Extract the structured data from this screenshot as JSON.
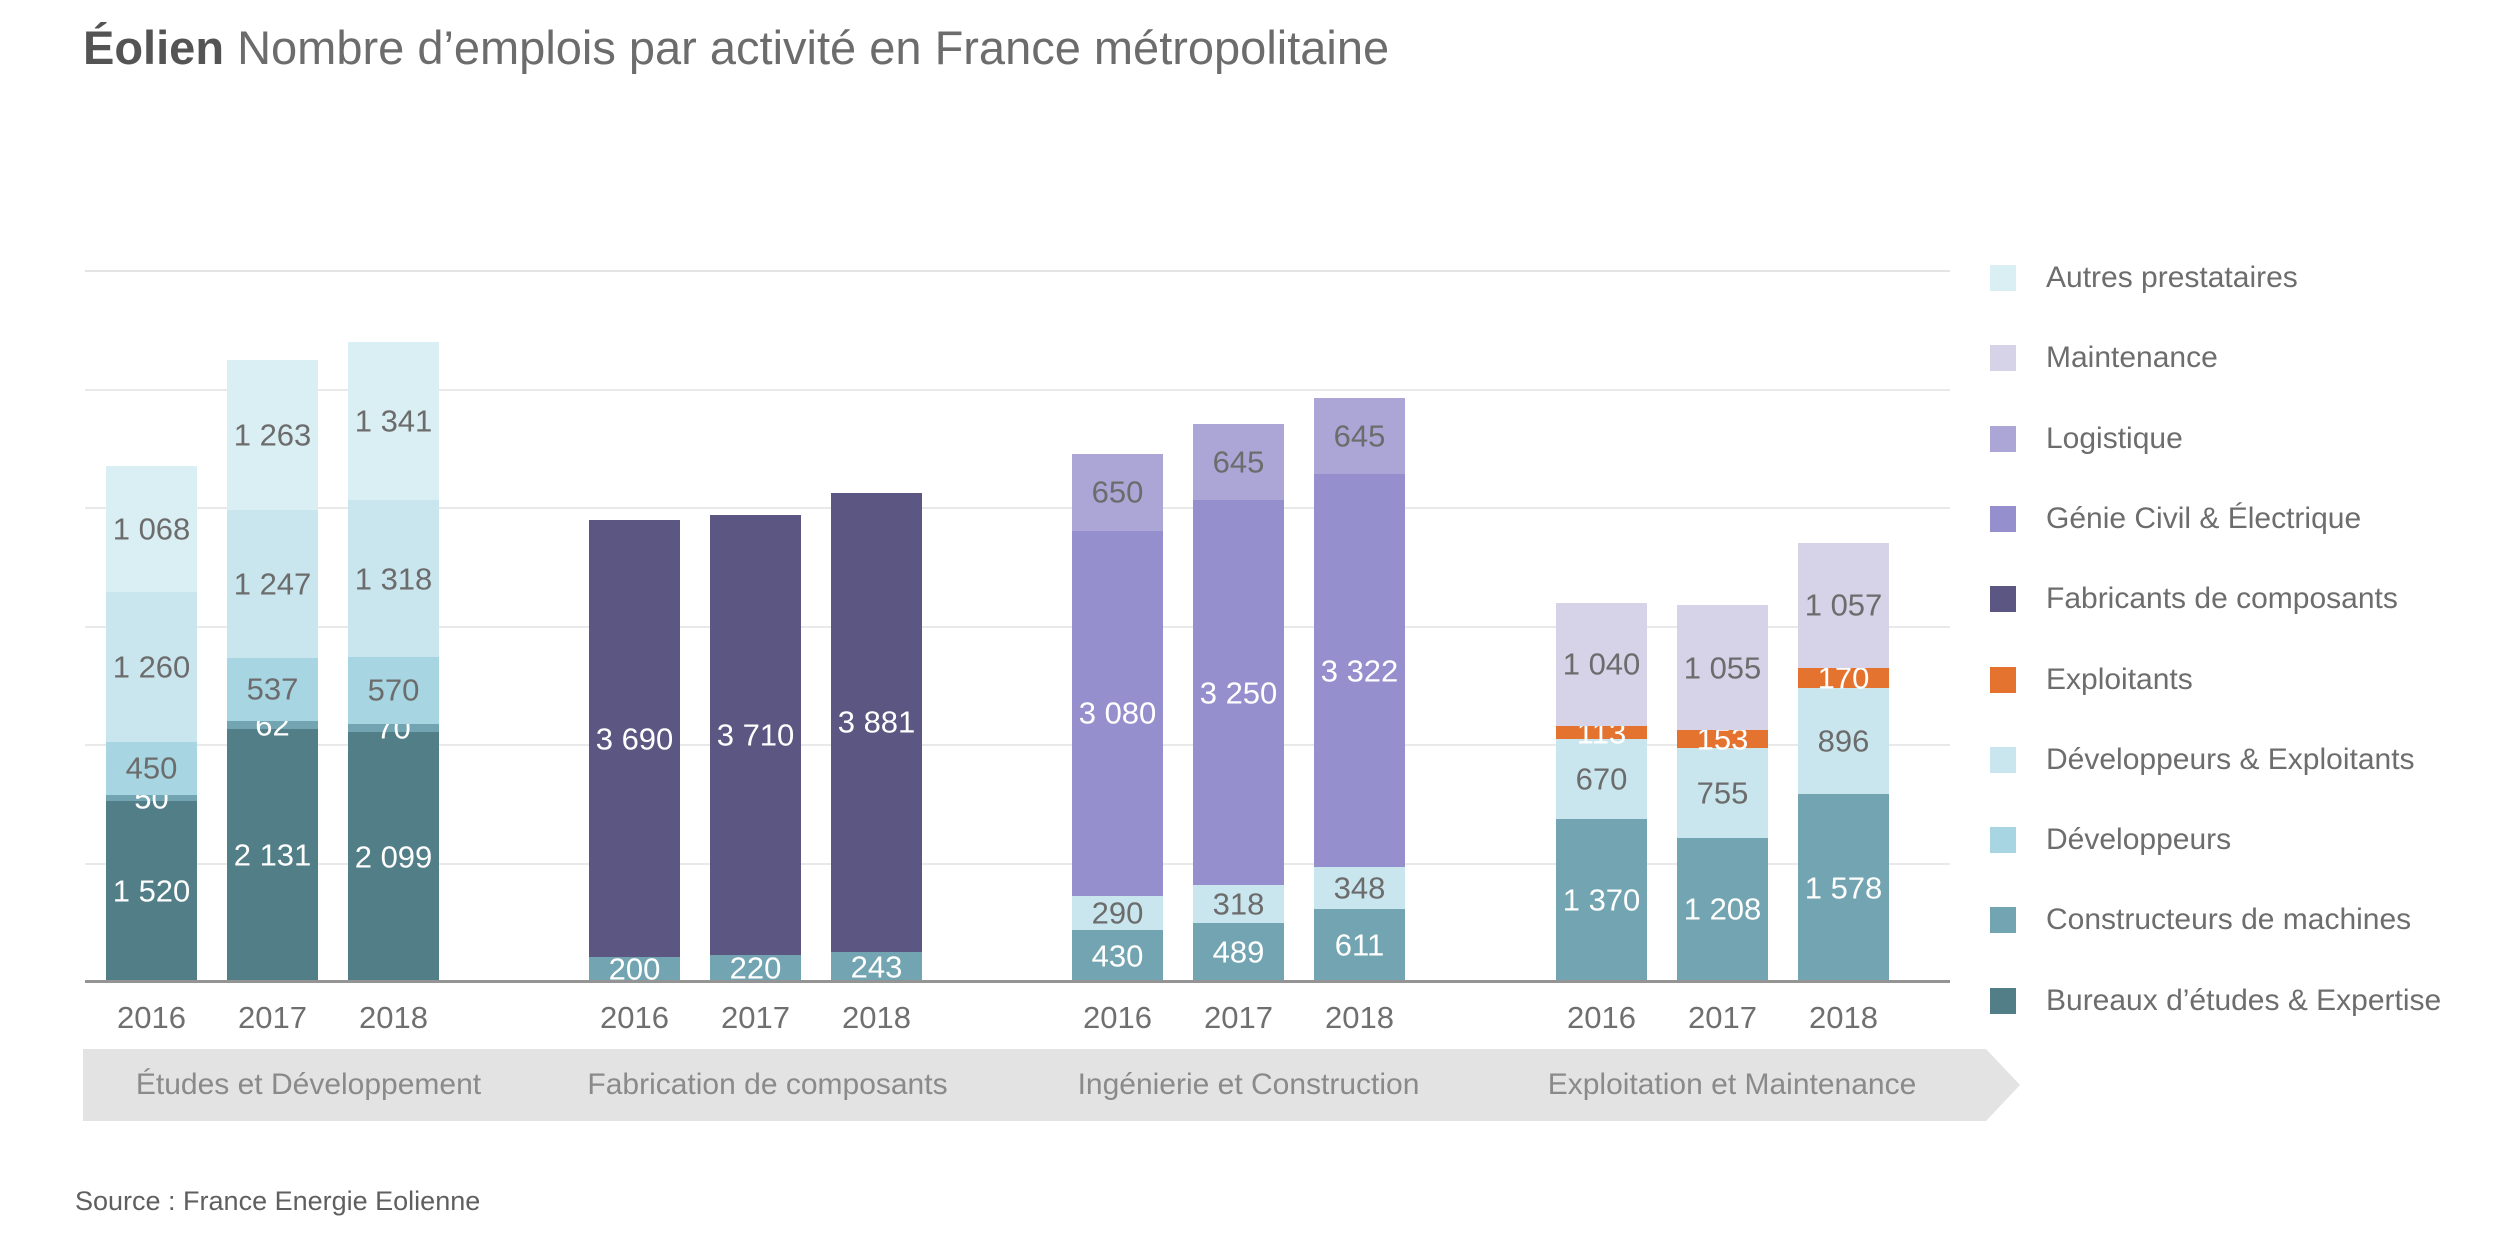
{
  "title": {
    "bold": "Éolien",
    "rest": "Nombre d’emplois par activité en France métropolitaine"
  },
  "source": "Source : France Energie Eolienne",
  "legend": {
    "position": "right",
    "items": [
      {
        "id": "autres",
        "label": "Autres prestataires",
        "color": "#DAEFF3"
      },
      {
        "id": "maintenance",
        "label": "Maintenance",
        "color": "#D6D3E8"
      },
      {
        "id": "logistique",
        "label": "Logistique",
        "color": "#ACA6D7"
      },
      {
        "id": "genie",
        "label": "Génie Civil & Électrique",
        "color": "#9590CD"
      },
      {
        "id": "fabricants",
        "label": "Fabricants de composants",
        "color": "#5C5782"
      },
      {
        "id": "exploitants",
        "label": "Exploitants",
        "color": "#E4732F"
      },
      {
        "id": "dev_exploitants",
        "label": "Développeurs & Exploitants",
        "color": "#C9E6EE"
      },
      {
        "id": "developpeurs",
        "label": "Développeurs",
        "color": "#A7D6E2"
      },
      {
        "id": "constructeurs",
        "label": "Constructeurs de machines",
        "color": "#72A5B1"
      },
      {
        "id": "bureaux",
        "label": "Bureaux d’études & Expertise",
        "color": "#527E88"
      }
    ]
  },
  "chart_data": {
    "type": "bar",
    "stacked": true,
    "ylim": [
      0,
      6000
    ],
    "grid_step": 1000,
    "grid": "horizontal",
    "y_tick_labels_visible": false,
    "segment_order": "bottom_to_top",
    "groups": [
      {
        "name": "Études et Développement",
        "bars": [
          {
            "year": "2016",
            "total": 4348,
            "segments": [
              {
                "series": "bureaux",
                "value": 1520,
                "label": "1 520",
                "text": "white"
              },
              {
                "series": "constructeurs",
                "value": 50,
                "label": "50",
                "text": "white"
              },
              {
                "series": "developpeurs",
                "value": 450,
                "label": "450",
                "text": "dark"
              },
              {
                "series": "dev_exploitants",
                "value": 1260,
                "label": "1 260",
                "text": "dark"
              },
              {
                "series": "autres",
                "value": 1068,
                "label": "1 068",
                "text": "dark"
              }
            ]
          },
          {
            "year": "2017",
            "total": 5240,
            "segments": [
              {
                "series": "bureaux",
                "value": 2131,
                "label": "2 131",
                "text": "white"
              },
              {
                "series": "constructeurs",
                "value": 62,
                "label": "62",
                "text": "white"
              },
              {
                "series": "developpeurs",
                "value": 537,
                "label": "537",
                "text": "dark"
              },
              {
                "series": "dev_exploitants",
                "value": 1247,
                "label": "1 247",
                "text": "dark"
              },
              {
                "series": "autres",
                "value": 1263,
                "label": "1 263",
                "text": "dark"
              }
            ]
          },
          {
            "year": "2018",
            "total": 5398,
            "segments": [
              {
                "series": "bureaux",
                "value": 2099,
                "label": "2 099",
                "text": "white"
              },
              {
                "series": "constructeurs",
                "value": 70,
                "label": "70",
                "text": "white"
              },
              {
                "series": "developpeurs",
                "value": 570,
                "label": "570",
                "text": "dark"
              },
              {
                "series": "dev_exploitants",
                "value": 1318,
                "label": "1 318",
                "text": "dark"
              },
              {
                "series": "autres",
                "value": 1341,
                "label": "1 341",
                "text": "dark"
              }
            ]
          }
        ]
      },
      {
        "name": "Fabrication de composants",
        "bars": [
          {
            "year": "2016",
            "total": 3890,
            "segments": [
              {
                "series": "constructeurs",
                "value": 200,
                "label": "200",
                "text": "white"
              },
              {
                "series": "fabricants",
                "value": 3690,
                "label": "3 690",
                "text": "white"
              }
            ]
          },
          {
            "year": "2017",
            "total": 3930,
            "segments": [
              {
                "series": "constructeurs",
                "value": 220,
                "label": "220",
                "text": "white"
              },
              {
                "series": "fabricants",
                "value": 3710,
                "label": "3 710",
                "text": "white"
              }
            ]
          },
          {
            "year": "2018",
            "total": 4124,
            "segments": [
              {
                "series": "constructeurs",
                "value": 243,
                "label": "243",
                "text": "white"
              },
              {
                "series": "fabricants",
                "value": 3881,
                "label": "3 881",
                "text": "white"
              }
            ]
          }
        ]
      },
      {
        "name": "Ingénierie et Construction",
        "bars": [
          {
            "year": "2016",
            "total": 4450,
            "segments": [
              {
                "series": "constructeurs",
                "value": 430,
                "label": "430",
                "text": "white"
              },
              {
                "series": "dev_exploitants",
                "value": 290,
                "label": "290",
                "text": "dark"
              },
              {
                "series": "genie",
                "value": 3080,
                "label": "3 080",
                "text": "white"
              },
              {
                "series": "logistique",
                "value": 650,
                "label": "650",
                "text": "dark"
              }
            ]
          },
          {
            "year": "2017",
            "total": 4702,
            "segments": [
              {
                "series": "constructeurs",
                "value": 489,
                "label": "489",
                "text": "white"
              },
              {
                "series": "dev_exploitants",
                "value": 318,
                "label": "318",
                "text": "dark"
              },
              {
                "series": "genie",
                "value": 3250,
                "label": "3 250",
                "text": "white"
              },
              {
                "series": "logistique",
                "value": 645,
                "label": "645",
                "text": "dark"
              }
            ]
          },
          {
            "year": "2018",
            "total": 4926,
            "segments": [
              {
                "series": "constructeurs",
                "value": 611,
                "label": "611",
                "text": "white"
              },
              {
                "series": "dev_exploitants",
                "value": 348,
                "label": "348",
                "text": "dark"
              },
              {
                "series": "genie",
                "value": 3322,
                "label": "3 322",
                "text": "white"
              },
              {
                "series": "logistique",
                "value": 645,
                "label": "645",
                "text": "dark"
              }
            ]
          }
        ]
      },
      {
        "name": "Exploitation et Maintenance",
        "bars": [
          {
            "year": "2016",
            "total": 3193,
            "segments": [
              {
                "series": "constructeurs",
                "value": 1370,
                "label": "1 370",
                "text": "white"
              },
              {
                "series": "dev_exploitants",
                "value": 670,
                "label": "670",
                "text": "dark"
              },
              {
                "series": "exploitants",
                "value": 113,
                "label": "113",
                "text": "white"
              },
              {
                "series": "maintenance",
                "value": 1040,
                "label": "1 040",
                "text": "dark"
              }
            ]
          },
          {
            "year": "2017",
            "total": 3171,
            "segments": [
              {
                "series": "constructeurs",
                "value": 1208,
                "label": "1 208",
                "text": "white"
              },
              {
                "series": "dev_exploitants",
                "value": 755,
                "label": "755",
                "text": "dark"
              },
              {
                "series": "exploitants",
                "value": 153,
                "label": "153",
                "text": "white"
              },
              {
                "series": "maintenance",
                "value": 1055,
                "label": "1 055",
                "text": "dark"
              }
            ]
          },
          {
            "year": "2018",
            "total": 3701,
            "segments": [
              {
                "series": "constructeurs",
                "value": 1578,
                "label": "1 578",
                "text": "white"
              },
              {
                "series": "dev_exploitants",
                "value": 896,
                "label": "896",
                "text": "dark"
              },
              {
                "series": "exploitants",
                "value": 170,
                "label": "170",
                "text": "white"
              },
              {
                "series": "maintenance",
                "value": 1057,
                "label": "1 057",
                "text": "dark"
              }
            ]
          }
        ]
      }
    ]
  }
}
